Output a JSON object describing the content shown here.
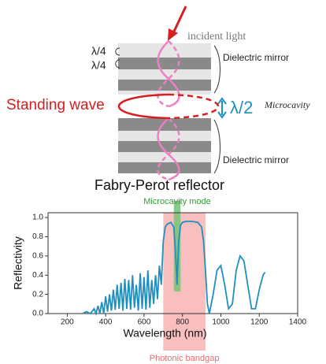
{
  "diagram": {
    "incident": "incident light",
    "quarter_top": "λ/4",
    "quarter_bottom": "λ/4",
    "mirror_top": "Dielectric mirror",
    "standing_wave": "Standing wave",
    "half_wave": "λ/2",
    "cavity": "Microcavity",
    "mirror_bottom": "Dielectric mirror",
    "caption": "Fabry-Perot reflector"
  },
  "chart_data": {
    "type": "line",
    "xlabel": "Wavelength (nm)",
    "ylabel": "Reflectivity",
    "xlim": [
      100,
      1400
    ],
    "ylim": [
      0,
      1.05
    ],
    "xticks": [
      200,
      400,
      600,
      800,
      1000,
      1200,
      1400
    ],
    "yticks": [
      {
        "value": 0,
        "label": "0.0"
      },
      {
        "value": 0.2,
        "label": "0.2"
      },
      {
        "value": 0.4,
        "label": "0.4"
      },
      {
        "value": 0.6,
        "label": "0.6"
      },
      {
        "value": 0.8,
        "label": "0.8"
      },
      {
        "value": 1,
        "label": "1.0"
      }
    ],
    "bands": [
      {
        "label": "Photonic bandgap",
        "range": [
          700,
          920
        ],
        "color": "#f6aaa8"
      },
      {
        "label": "Microcavity mode",
        "range": [
          755,
          790
        ],
        "color": "#7cc47c"
      }
    ],
    "x": [
      280,
      300,
      320,
      340,
      350,
      360,
      370,
      380,
      390,
      400,
      410,
      420,
      430,
      440,
      450,
      460,
      470,
      480,
      490,
      500,
      510,
      520,
      530,
      540,
      550,
      560,
      570,
      580,
      590,
      600,
      610,
      620,
      630,
      640,
      650,
      660,
      670,
      680,
      690,
      700,
      710,
      720,
      740,
      755,
      765,
      772,
      780,
      790,
      800,
      820,
      850,
      880,
      900,
      910,
      920,
      930,
      940,
      960,
      980,
      1000,
      1020,
      1040,
      1060,
      1080,
      1100,
      1120,
      1140,
      1160,
      1180,
      1200,
      1220,
      1230
    ],
    "series": [
      {
        "color": "#1f8fc0",
        "values": [
          0,
          0.02,
          0.0,
          0.05,
          0.0,
          0.08,
          0.0,
          0.12,
          0.0,
          0.18,
          0.02,
          0.2,
          0.03,
          0.25,
          0.04,
          0.3,
          0.05,
          0.32,
          0.03,
          0.36,
          0.05,
          0.35,
          0.04,
          0.4,
          0.06,
          0.3,
          0.03,
          0.42,
          0.05,
          0.38,
          0.04,
          0.45,
          0.06,
          0.35,
          0.1,
          0.4,
          0.15,
          0.5,
          0.3,
          0.75,
          0.9,
          0.93,
          0.95,
          0.9,
          0.6,
          0.3,
          0.75,
          0.92,
          0.95,
          0.96,
          0.96,
          0.95,
          0.9,
          0.75,
          0.45,
          0.1,
          0.0,
          0.2,
          0.45,
          0.5,
          0.3,
          0.05,
          0.1,
          0.45,
          0.6,
          0.55,
          0.3,
          0.05,
          0.05,
          0.25,
          0.4,
          0.43
        ]
      }
    ]
  }
}
